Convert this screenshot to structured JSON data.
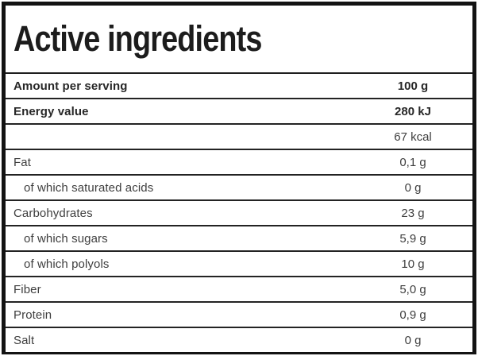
{
  "title": "Active ingredients",
  "table": {
    "header": {
      "label": "Amount per serving",
      "value": "100 g"
    },
    "rows": [
      {
        "label": "Energy value",
        "value": "280 kJ",
        "strong": true,
        "sub": false
      },
      {
        "label": "",
        "value": "67 kcal",
        "strong": false,
        "sub": false
      },
      {
        "label": "Fat",
        "value": "0,1 g",
        "strong": false,
        "sub": false
      },
      {
        "label": "of which saturated acids",
        "value": "0 g",
        "strong": false,
        "sub": true
      },
      {
        "label": "Carbohydrates",
        "value": "23 g",
        "strong": false,
        "sub": false
      },
      {
        "label": "of which sugars",
        "value": "5,9 g",
        "strong": false,
        "sub": true
      },
      {
        "label": "of which polyols",
        "value": "10 g",
        "strong": false,
        "sub": true
      },
      {
        "label": "Fiber",
        "value": "5,0 g",
        "strong": false,
        "sub": false
      },
      {
        "label": "Protein",
        "value": "0,9 g",
        "strong": false,
        "sub": false
      },
      {
        "label": "Salt",
        "value": "0 g",
        "strong": false,
        "sub": false
      }
    ]
  },
  "colors": {
    "frame": "#131313",
    "divider": "#232323",
    "text_regular": "#3e3e3e",
    "text_bold": "#272727",
    "background": "#ffffff"
  }
}
